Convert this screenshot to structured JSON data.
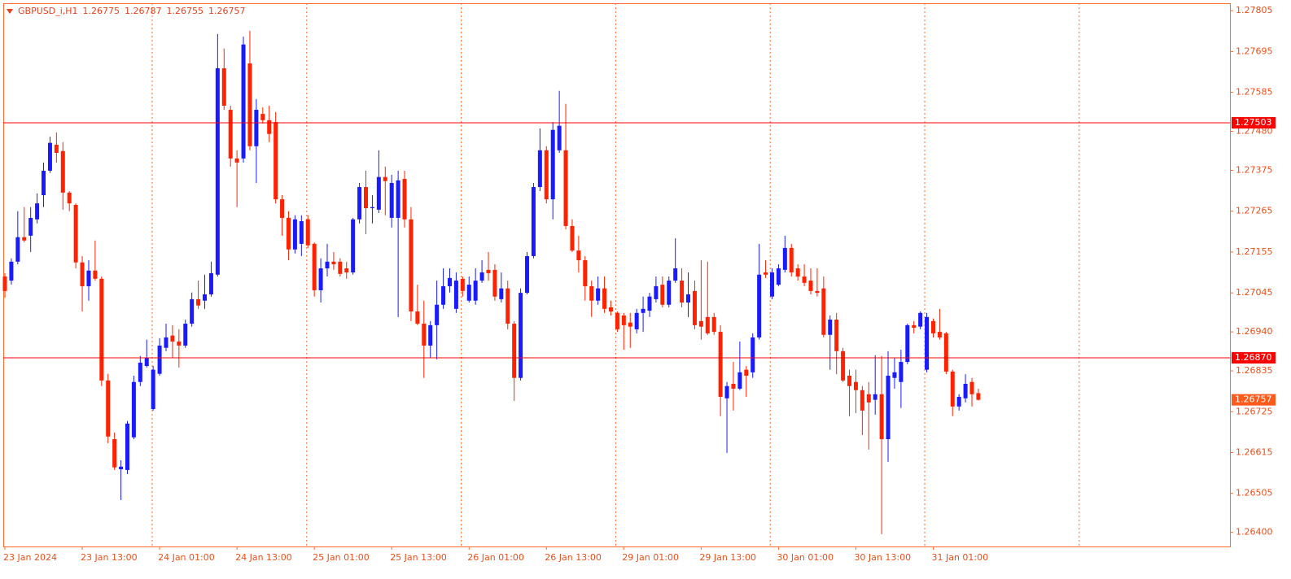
{
  "chart_data": {
    "type": "candlestick",
    "header": {
      "symbol": "GBPUSD_i,H1",
      "ohlc": [
        1.26775,
        1.26787,
        1.26755,
        1.26757
      ]
    },
    "categories": [
      "23 Jan 2024",
      null,
      null,
      null,
      null,
      null,
      null,
      null,
      null,
      null,
      null,
      null,
      "23 Jan 13:00",
      null,
      null,
      null,
      null,
      null,
      null,
      null,
      null,
      null,
      null,
      null,
      "24 Jan 01:00",
      null,
      null,
      null,
      null,
      null,
      null,
      null,
      null,
      null,
      null,
      null,
      "24 Jan 13:00",
      null,
      null,
      null,
      null,
      null,
      null,
      null,
      null,
      null,
      null,
      null,
      "25 Jan 01:00",
      null,
      null,
      null,
      null,
      null,
      null,
      null,
      null,
      null,
      null,
      null,
      "25 Jan 13:00",
      null,
      null,
      null,
      null,
      null,
      null,
      null,
      null,
      null,
      null,
      null,
      "26 Jan 01:00",
      null,
      null,
      null,
      null,
      null,
      null,
      null,
      null,
      null,
      null,
      null,
      "26 Jan 13:00",
      null,
      null,
      null,
      null,
      null,
      null,
      null,
      null,
      null,
      null,
      null,
      "29 Jan 01:00",
      null,
      null,
      null,
      null,
      null,
      null,
      null,
      null,
      null,
      null,
      null,
      "29 Jan 13:00",
      null,
      null,
      null,
      null,
      null,
      null,
      null,
      null,
      null,
      null,
      null,
      "30 Jan 01:00",
      null,
      null,
      null,
      null,
      null,
      null,
      null,
      null,
      null,
      null,
      null,
      "30 Jan 13:00",
      null,
      null,
      null,
      null,
      null,
      null,
      null,
      null,
      null,
      null,
      null,
      "31 Jan 01:00",
      null,
      null,
      null,
      null,
      null,
      null,
      null
    ],
    "open": [
      1.27089,
      1.27078,
      1.27129,
      1.27195,
      1.27199,
      1.27243,
      1.27308,
      1.27374,
      1.27444,
      1.27427,
      1.27315,
      1.27282,
      1.27127,
      1.27063,
      1.27105,
      1.27083,
      1.26809,
      1.26651,
      1.2657,
      1.26568,
      1.26656,
      1.26805,
      1.26848,
      1.26732,
      1.26827,
      1.26897,
      1.2693,
      1.26914,
      1.26903,
      1.26962,
      1.27028,
      1.27024,
      1.27041,
      1.27094,
      1.2765,
      1.27538,
      1.27407,
      1.27407,
      1.27663,
      1.2744,
      1.27527,
      1.2751,
      1.27505,
      1.27297,
      1.27247,
      1.27162,
      1.27177,
      1.27243,
      1.27177,
      1.27052,
      1.27111,
      1.27129,
      1.27129,
      1.27111,
      1.271,
      1.27243,
      1.2733,
      1.27273,
      1.27269,
      1.27357,
      1.27247,
      1.27247,
      1.27352,
      1.27243,
      1.26995,
      1.26962,
      1.26903,
      1.26958,
      1.27013,
      1.27063,
      1.27002,
      1.27083,
      1.27024,
      1.27024,
      1.27078,
      1.27107,
      1.27107,
      1.27028,
      1.27057,
      1.26962,
      1.26816,
      1.27045,
      1.27144,
      1.2733,
      1.27429,
      1.27297,
      1.27429,
      1.27429,
      1.27225,
      1.27159,
      1.27133,
      1.27063,
      1.27024,
      1.27057,
      1.27006,
      1.26991,
      1.26984,
      1.26965,
      1.26947,
      1.26991,
      1.26997,
      1.27028,
      1.27067,
      1.27013,
      1.27078,
      1.27078,
      1.27019,
      1.2705,
      1.26969,
      1.2698,
      1.2698,
      1.2694,
      1.26761,
      1.268,
      1.26787,
      1.26838,
      1.26831,
      1.26925,
      1.271,
      1.27035,
      1.27067,
      1.27107,
      1.27166,
      1.27111,
      1.27089,
      1.27078,
      1.2705,
      1.27057,
      1.26932,
      1.26973,
      1.26888,
      1.26822,
      1.26805,
      1.26783,
      1.26772,
      1.26757,
      1.26772,
      1.26651,
      1.26816,
      1.26805,
      1.26859,
      1.26958,
      1.26954,
      1.26838,
      1.26969,
      1.2694,
      1.26936,
      1.26833,
      1.26739,
      1.26761,
      1.26805,
      1.26775
    ],
    "high": [
      1.27098,
      1.27138,
      1.27265,
      1.27276,
      1.27276,
      1.27313,
      1.27396,
      1.27466,
      1.27477,
      1.27451,
      1.27319,
      1.27286,
      1.27144,
      1.27133,
      1.27186,
      1.27089,
      1.26827,
      1.26669,
      1.26594,
      1.267,
      1.26822,
      1.26875,
      1.26919,
      1.26848,
      1.26923,
      1.26962,
      1.26958,
      1.26947,
      1.26973,
      1.27046,
      1.27078,
      1.27094,
      1.27129,
      1.27742,
      1.27703,
      1.27549,
      1.27429,
      1.27735,
      1.27751,
      1.27567,
      1.27545,
      1.27549,
      1.27532,
      1.27308,
      1.27265,
      1.27254,
      1.27254,
      1.27254,
      1.27181,
      1.27138,
      1.27177,
      1.27155,
      1.27138,
      1.27129,
      1.27247,
      1.27341,
      1.27374,
      1.27308,
      1.27429,
      1.27385,
      1.27363,
      1.27374,
      1.27374,
      1.27276,
      1.27067,
      1.27024,
      1.26969,
      1.27078,
      1.27111,
      1.27111,
      1.271,
      1.27089,
      1.27089,
      1.27111,
      1.27133,
      1.27155,
      1.27122,
      1.271,
      1.27078,
      1.26969,
      1.27057,
      1.27155,
      1.27341,
      1.27488,
      1.2744,
      1.27505,
      1.27589,
      1.27554,
      1.27243,
      1.27199,
      1.27144,
      1.27078,
      1.27089,
      1.27089,
      1.27024,
      1.26995,
      1.26991,
      1.26991,
      1.27002,
      1.27035,
      1.27045,
      1.27089,
      1.27089,
      1.27089,
      1.27192,
      1.27111,
      1.271,
      1.27078,
      1.27133,
      1.27129,
      1.26991,
      1.26958,
      1.26805,
      1.26859,
      1.26914,
      1.26848,
      1.26936,
      1.27177,
      1.27133,
      1.27111,
      1.27122,
      1.27199,
      1.27177,
      1.27122,
      1.27122,
      1.27111,
      1.27111,
      1.27089,
      1.26984,
      1.26991,
      1.26897,
      1.26838,
      1.26838,
      1.26794,
      1.26805,
      1.26877,
      1.26875,
      1.26888,
      1.2687,
      1.26892,
      1.26962,
      1.26969,
      1.26995,
      1.26991,
      1.26976,
      1.27002,
      1.2694,
      1.26838,
      1.26772,
      1.26826,
      1.26816,
      1.26787
    ],
    "low": [
      1.27032,
      1.27067,
      1.27122,
      1.27181,
      1.27155,
      1.27232,
      1.27276,
      1.27368,
      1.27396,
      1.27269,
      1.27265,
      1.27111,
      1.26995,
      1.27024,
      1.27078,
      1.26794,
      1.2664,
      1.26568,
      1.26487,
      1.26557,
      1.26651,
      1.26794,
      1.26844,
      1.26728,
      1.26822,
      1.26888,
      1.2687,
      1.26844,
      1.26897,
      1.26954,
      1.27002,
      1.27002,
      1.27035,
      1.27089,
      1.27538,
      1.27385,
      1.27276,
      1.27396,
      1.27429,
      1.27341,
      1.27501,
      1.27451,
      1.27286,
      1.27199,
      1.27133,
      1.27151,
      1.27144,
      1.27166,
      1.27035,
      1.27019,
      1.27089,
      1.27107,
      1.27089,
      1.27083,
      1.27094,
      1.27232,
      1.27203,
      1.27232,
      1.2726,
      1.27254,
      1.27221,
      1.2698,
      1.27221,
      1.26969,
      1.26958,
      1.26816,
      1.2687,
      1.26866,
      1.27002,
      1.27046,
      1.26991,
      1.27035,
      1.27019,
      1.27013,
      1.27072,
      1.27078,
      1.27024,
      1.27019,
      1.26947,
      1.26754,
      1.26809,
      1.27041,
      1.27138,
      1.27319,
      1.27286,
      1.27243,
      1.27422,
      1.27216,
      1.27155,
      1.271,
      1.27024,
      1.2698,
      1.27013,
      1.26991,
      1.26984,
      1.2694,
      1.26892,
      1.26897,
      1.26936,
      1.2694,
      1.2698,
      1.27019,
      1.27006,
      1.27006,
      1.27072,
      1.27006,
      1.2698,
      1.26947,
      1.26919,
      1.26932,
      1.26932,
      1.26713,
      1.26614,
      1.26728,
      1.26783,
      1.26765,
      1.26816,
      1.26919,
      1.27085,
      1.27028,
      1.27063,
      1.271,
      1.27089,
      1.27078,
      1.27063,
      1.27041,
      1.27035,
      1.26925,
      1.26838,
      1.26826,
      1.26805,
      1.26713,
      1.26721,
      1.26662,
      1.26623,
      1.26717,
      1.26395,
      1.2659,
      1.26787,
      1.26735,
      1.26853,
      1.26936,
      1.26947,
      1.26831,
      1.26925,
      1.26919,
      1.26826,
      1.26713,
      1.26728,
      1.2675,
      1.26739,
      1.26755
    ],
    "close": [
      1.2705,
      1.27129,
      1.27195,
      1.27186,
      1.27247,
      1.27286,
      1.27374,
      1.27449,
      1.27422,
      1.27315,
      1.27286,
      1.27127,
      1.27063,
      1.27105,
      1.27083,
      1.26809,
      1.26658,
      1.26575,
      1.26577,
      1.26693,
      1.26805,
      1.26857,
      1.2687,
      1.26838,
      1.26903,
      1.26925,
      1.26914,
      1.26903,
      1.26962,
      1.27028,
      1.27011,
      1.27041,
      1.27098,
      1.2765,
      1.27549,
      1.27407,
      1.27396,
      1.27714,
      1.2744,
      1.27538,
      1.2751,
      1.27473,
      1.27297,
      1.27247,
      1.27162,
      1.27243,
      1.27238,
      1.27173,
      1.27052,
      1.27111,
      1.27129,
      1.27122,
      1.27096,
      1.271,
      1.27243,
      1.2733,
      1.27273,
      1.27276,
      1.27357,
      1.27346,
      1.27341,
      1.27348,
      1.27243,
      1.26995,
      1.26962,
      1.26903,
      1.26958,
      1.27013,
      1.27063,
      1.27085,
      1.27078,
      1.2705,
      1.27067,
      1.27078,
      1.271,
      1.27098,
      1.27035,
      1.27057,
      1.26962,
      1.26816,
      1.27045,
      1.27144,
      1.2733,
      1.27429,
      1.27297,
      1.27484,
      1.27495,
      1.27225,
      1.27159,
      1.27133,
      1.27063,
      1.27024,
      1.27057,
      1.27002,
      1.26995,
      1.26947,
      1.26958,
      1.26954,
      1.26991,
      1.27002,
      1.27035,
      1.27063,
      1.27013,
      1.27078,
      1.27111,
      1.27019,
      1.27041,
      1.26958,
      1.26954,
      1.26936,
      1.2694,
      1.26765,
      1.26794,
      1.26787,
      1.26831,
      1.26822,
      1.26925,
      1.27094,
      1.27094,
      1.271,
      1.27111,
      1.27166,
      1.271,
      1.27089,
      1.27072,
      1.2705,
      1.27045,
      1.26932,
      1.26973,
      1.26888,
      1.26809,
      1.26794,
      1.26783,
      1.26728,
      1.2675,
      1.26772,
      1.26651,
      1.26822,
      1.26831,
      1.26859,
      1.26958,
      1.26951,
      1.26991,
      1.2698,
      1.26936,
      1.26925,
      1.26833,
      1.26739,
      1.26765,
      1.268,
      1.26772,
      1.26757
    ],
    "up_color": "#1a1aff",
    "down_color": "#ff2200",
    "ylim": [
      1.26362,
      1.27825
    ],
    "yticks": [
      1.27805,
      1.27695,
      1.27585,
      {
        "value": 1.2748,
        "label": "1.27480"
      },
      1.27375,
      1.27265,
      1.27155,
      1.27045,
      {
        "value": 1.2694,
        "label": "1.26940"
      },
      1.26835,
      1.26725,
      1.26615,
      1.26505,
      {
        "value": 1.264,
        "label": "1.26400"
      }
    ],
    "hlines": [
      1.27503,
      {
        "value": 1.2687,
        "label": "1.26870"
      }
    ],
    "hline_color": "#ff0000",
    "last_price": 1.26757,
    "last_price_color": "#ff5a1a",
    "grid": true
  }
}
